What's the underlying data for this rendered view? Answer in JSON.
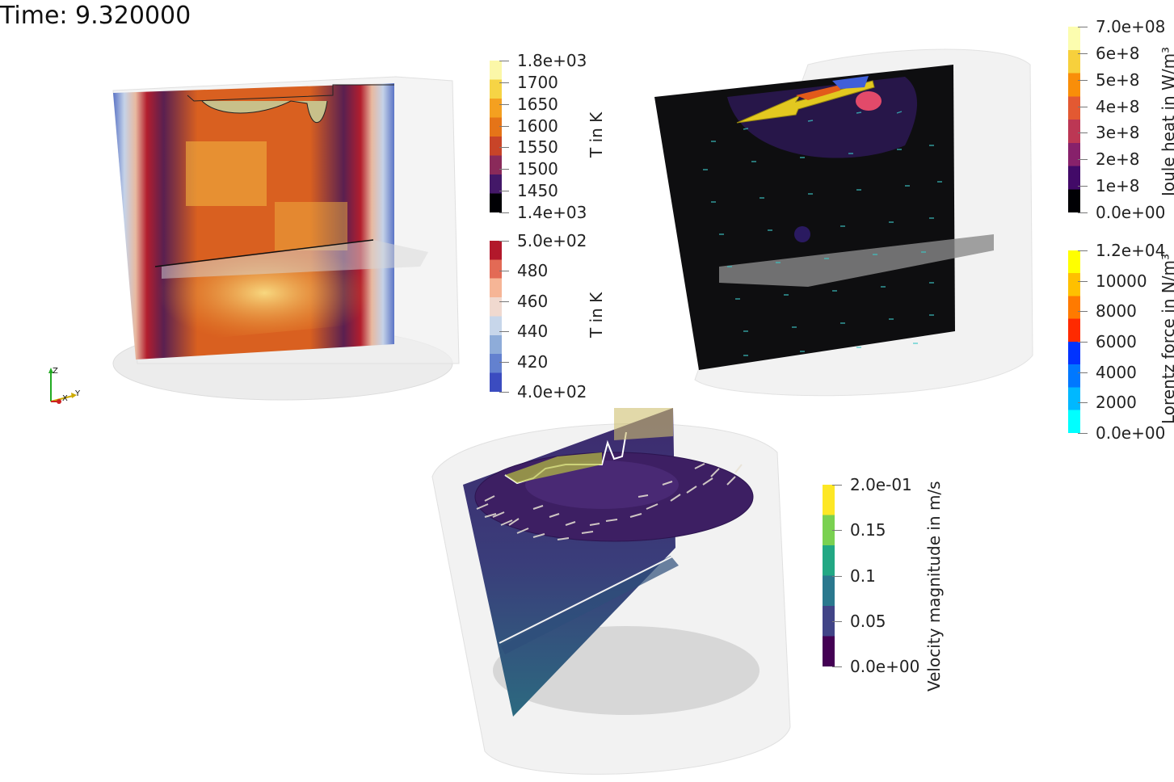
{
  "time_label": "Time: 9.320000",
  "axes": {
    "z": "Z",
    "x": "X",
    "y": "Y"
  },
  "colorbars": {
    "temp_melt": {
      "title": "T in K",
      "ticks": [
        "1.8e+03",
        "1700",
        "1650",
        "1600",
        "1550",
        "1500",
        "1450",
        "1.4e+03"
      ],
      "colors": [
        "#fbf7a8",
        "#f6d445",
        "#f4a020",
        "#e57418",
        "#c84428",
        "#8a2a5a",
        "#431868",
        "#000004"
      ]
    },
    "temp_mold": {
      "title": "T in K",
      "ticks": [
        "5.0e+02",
        "480",
        "460",
        "440",
        "420",
        "4.0e+02"
      ],
      "colors": [
        "#b2182b",
        "#e36a55",
        "#f6b596",
        "#f0d9cf",
        "#c7d6ea",
        "#8eacd9",
        "#6381cf",
        "#3b4cc0"
      ]
    },
    "joule": {
      "title": "Joule heat in W/m³",
      "ticks": [
        "7.0e+08",
        "6e+8",
        "5e+8",
        "4e+8",
        "3e+8",
        "2e+8",
        "1e+8",
        "0.0e+00"
      ],
      "colors": [
        "#fcfdaf",
        "#f7d03c",
        "#f98e09",
        "#e35932",
        "#bc3754",
        "#87216b",
        "#420a68",
        "#000004"
      ]
    },
    "lorentz": {
      "title": "Lorentz force in N/m³",
      "ticks": [
        "1.2e+04",
        "10000",
        "8000",
        "6000",
        "4000",
        "2000",
        "0.0e+00"
      ],
      "colors": [
        "#ffff00",
        "#ffc000",
        "#ff7a00",
        "#ff2a00",
        "#0033ff",
        "#0078ff",
        "#00b8ff",
        "#00ffff"
      ]
    },
    "velocity": {
      "title": "Velocity magnitude in m/s",
      "ticks": [
        "2.0e-01",
        "0.15",
        "0.1",
        "0.05",
        "0.0e+00"
      ],
      "colors": [
        "#fde725",
        "#7ad151",
        "#22a884",
        "#2a788e",
        "#414487",
        "#440154"
      ]
    }
  }
}
